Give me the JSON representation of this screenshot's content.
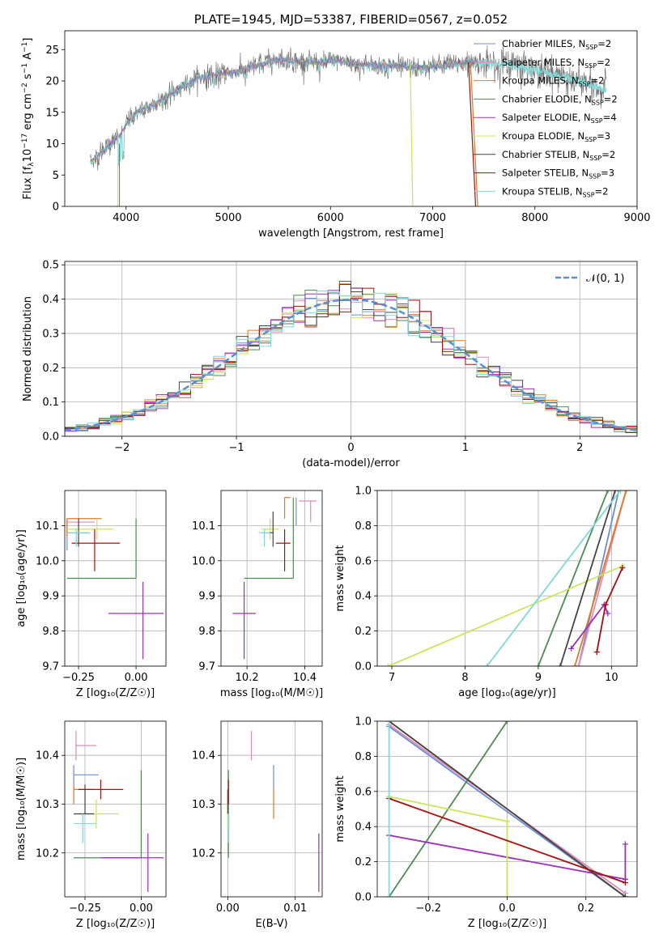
{
  "colors": {
    "chabrier_miles": "#6b8dd6",
    "salpeter_miles": "#e08bb8",
    "kroupa_miles": "#e07a22",
    "chabrier_elodie": "#4f8a55",
    "salpeter_elodie": "#9b30b8",
    "kroupa_elodie": "#c9e65a",
    "chabrier_stelib": "#444444",
    "salpeter_stelib": "#a50f0f",
    "kroupa_stelib": "#7fd9d9",
    "data_gray": "#777777",
    "normal_curve": "#5b8fd0",
    "grid": "#b0b0b0"
  },
  "chart_data": [
    {
      "id": "spectrum",
      "type": "line",
      "title": "PLATE=1945, MJD=53387, FIBERID=0567, z=0.052",
      "xlabel": "wavelength [Angstrom, rest frame]",
      "ylabel": "Flux [f",
      "ylabel_parts": [
        "Flux [f",
        "λ",
        "10",
        "−17",
        " erg cm",
        "−2",
        " s",
        "−1",
        " A",
        "−1",
        "]"
      ],
      "xlim": [
        3400,
        9000
      ],
      "ylim": [
        0,
        28
      ],
      "xticks": [
        4000,
        5000,
        6000,
        7000,
        8000,
        9000
      ],
      "yticks": [
        0,
        5,
        10,
        15,
        20,
        25
      ],
      "grid": false,
      "legend_position": "top-right",
      "legend": [
        {
          "label": "Chabrier MILES, N",
          "sub": "SSP",
          "tail": "=2",
          "color_key": "chabrier_miles"
        },
        {
          "label": "Salpeter MILES, N",
          "sub": "SSP",
          "tail": "=2",
          "color_key": "salpeter_miles"
        },
        {
          "label": "Kroupa MILES, N",
          "sub": "SSP",
          "tail": "=2",
          "color_key": "kroupa_miles"
        },
        {
          "label": "Chabrier ELODIE, N",
          "sub": "SSP",
          "tail": "=2",
          "color_key": "chabrier_elodie"
        },
        {
          "label": "Salpeter ELODIE, N",
          "sub": "SSP",
          "tail": "=4",
          "color_key": "salpeter_elodie"
        },
        {
          "label": "Kroupa ELODIE, N",
          "sub": "SSP",
          "tail": "=3",
          "color_key": "kroupa_elodie"
        },
        {
          "label": "Chabrier STELIB, N",
          "sub": "SSP",
          "tail": "=2",
          "color_key": "chabrier_stelib"
        },
        {
          "label": "Salpeter STELIB, N",
          "sub": "SSP",
          "tail": "=3",
          "color_key": "salpeter_stelib"
        },
        {
          "label": "Kroupa STELIB, N",
          "sub": "SSP",
          "tail": "=2",
          "color_key": "kroupa_stelib"
        }
      ],
      "continuum": [
        [
          3650,
          7.0
        ],
        [
          3750,
          8.5
        ],
        [
          3850,
          10.0
        ],
        [
          3950,
          11.5
        ],
        [
          4000,
          13.0
        ],
        [
          4100,
          15.0
        ],
        [
          4300,
          16.5
        ],
        [
          4500,
          18.5
        ],
        [
          4700,
          20.5
        ],
        [
          4900,
          21.0
        ],
        [
          5100,
          21.5
        ],
        [
          5300,
          22.5
        ],
        [
          5500,
          23.5
        ],
        [
          5700,
          23.0
        ],
        [
          5900,
          23.0
        ],
        [
          6100,
          23.2
        ],
        [
          6300,
          22.5
        ],
        [
          6500,
          22.5
        ],
        [
          6700,
          22.3
        ],
        [
          6900,
          22.0
        ],
        [
          7100,
          22.5
        ],
        [
          7400,
          23.0
        ],
        [
          7800,
          22.5
        ],
        [
          8200,
          21.0
        ],
        [
          8500,
          19.5
        ],
        [
          8700,
          18.5
        ]
      ]
    },
    {
      "id": "residuals",
      "type": "bar",
      "xlabel": "(data-model)/error",
      "ylabel": "Normed distribution",
      "xlim": [
        -2.5,
        2.5
      ],
      "ylim": [
        0,
        0.51
      ],
      "xticks": [
        -2,
        -1,
        0,
        1,
        2
      ],
      "yticks": [
        0.0,
        0.1,
        0.2,
        0.3,
        0.4,
        0.5
      ],
      "grid": true,
      "legend_position": "top-right",
      "legend_label": "𝒩(0, 1)",
      "bin_width": 0.1
    },
    {
      "id": "age_vs_Z",
      "type": "scatter",
      "xlabel": "Z [log₁₀(Z/Z☉)]",
      "ylabel": "age  [log₁₀(age/yr)]",
      "xlim": [
        -0.31,
        0.13
      ],
      "ylim": [
        9.7,
        10.2
      ],
      "xticks": [
        -0.25,
        0.0
      ],
      "yticks": [
        9.7,
        9.8,
        9.9,
        10.0,
        10.1
      ],
      "grid": true,
      "points": [
        {
          "key": "chabrier_miles",
          "x": -0.3,
          "y": 10.08,
          "xe": [
            -0.3,
            -0.21
          ],
          "ye": [
            10.03,
            10.12
          ]
        },
        {
          "key": "salpeter_miles",
          "x": -0.3,
          "y": 10.11,
          "xe": [
            -0.3,
            -0.18
          ],
          "ye": [
            10.06,
            10.12
          ]
        },
        {
          "key": "kroupa_miles",
          "x": -0.3,
          "y": 10.12,
          "xe": [
            -0.3,
            -0.15
          ],
          "ye": [
            10.07,
            10.12
          ]
        },
        {
          "key": "chabrier_elodie",
          "x": 0.0,
          "y": 9.95,
          "xe": [
            -0.3,
            0.0
          ],
          "ye": [
            9.95,
            10.12
          ]
        },
        {
          "key": "salpeter_elodie",
          "x": 0.03,
          "y": 9.85,
          "xe": [
            -0.12,
            0.12
          ],
          "ye": [
            9.72,
            9.94
          ]
        },
        {
          "key": "kroupa_elodie",
          "x": -0.17,
          "y": 10.09,
          "xe": [
            -0.3,
            -0.1
          ],
          "ye": [
            10.06,
            10.12
          ]
        },
        {
          "key": "chabrier_stelib",
          "x": -0.25,
          "y": 10.08,
          "xe": [
            -0.3,
            -0.2
          ],
          "ye": [
            10.04,
            10.12
          ]
        },
        {
          "key": "salpeter_stelib",
          "x": -0.18,
          "y": 10.05,
          "xe": [
            -0.28,
            -0.07
          ],
          "ye": [
            9.97,
            10.09
          ]
        },
        {
          "key": "kroupa_stelib",
          "x": -0.26,
          "y": 10.08,
          "xe": [
            -0.3,
            -0.2
          ],
          "ye": [
            10.04,
            10.09
          ]
        }
      ]
    },
    {
      "id": "age_vs_mass",
      "type": "scatter",
      "xlabel": "mass [log₁₀(M/M☉)]",
      "ylabel": "",
      "xlim": [
        10.11,
        10.46
      ],
      "ylim": [
        9.7,
        10.2
      ],
      "xticks": [
        10.2,
        10.4
      ],
      "yticks": [
        9.7,
        9.8,
        9.9,
        10.0,
        10.1
      ],
      "grid": true,
      "points": [
        {
          "key": "chabrier_miles",
          "x": 10.37,
          "y": 10.15,
          "xe": [
            10.37,
            10.37
          ],
          "ye": [
            10.1,
            10.18
          ]
        },
        {
          "key": "salpeter_miles",
          "x": 10.42,
          "y": 10.17,
          "xe": [
            10.38,
            10.44
          ],
          "ye": [
            10.11,
            10.17
          ]
        },
        {
          "key": "kroupa_miles",
          "x": 10.33,
          "y": 10.18,
          "xe": [
            10.33,
            10.35
          ],
          "ye": [
            10.12,
            10.18
          ]
        },
        {
          "key": "chabrier_elodie",
          "x": 10.36,
          "y": 9.95,
          "xe": [
            10.19,
            10.36
          ],
          "ye": [
            9.95,
            10.18
          ]
        },
        {
          "key": "salpeter_elodie",
          "x": 10.19,
          "y": 9.85,
          "xe": [
            10.15,
            10.23
          ],
          "ye": [
            9.72,
            9.94
          ]
        },
        {
          "key": "kroupa_elodie",
          "x": 10.28,
          "y": 10.09,
          "xe": [
            10.25,
            10.31
          ],
          "ye": [
            10.06,
            10.12
          ]
        },
        {
          "key": "chabrier_stelib",
          "x": 10.29,
          "y": 10.08,
          "xe": [
            10.25,
            10.29
          ],
          "ye": [
            10.04,
            10.14
          ]
        },
        {
          "key": "salpeter_stelib",
          "x": 10.33,
          "y": 10.05,
          "xe": [
            10.3,
            10.35
          ],
          "ye": [
            9.97,
            10.09
          ]
        },
        {
          "key": "kroupa_stelib",
          "x": 10.26,
          "y": 10.08,
          "xe": [
            10.24,
            10.28
          ],
          "ye": [
            10.04,
            10.09
          ]
        }
      ]
    },
    {
      "id": "massweight_vs_age",
      "type": "line",
      "xlabel": "age  [log₁₀(age/yr)]",
      "ylabel": "mass weight",
      "xlim": [
        6.8,
        10.35
      ],
      "ylim": [
        0,
        1
      ],
      "xticks": [
        7,
        8,
        9,
        10
      ],
      "yticks": [
        0.0,
        0.2,
        0.4,
        0.6,
        0.8,
        1.0
      ],
      "grid": true,
      "series": [
        {
          "key": "chabrier_miles",
          "points": [
            [
              9.55,
              0.0
            ],
            [
              10.1,
              1.0
            ]
          ]
        },
        {
          "key": "salpeter_miles",
          "points": [
            [
              9.55,
              0.0
            ],
            [
              10.2,
              1.0
            ]
          ]
        },
        {
          "key": "kroupa_miles",
          "points": [
            [
              9.5,
              0.0
            ],
            [
              10.2,
              1.0
            ]
          ]
        },
        {
          "key": "chabrier_elodie",
          "points": [
            [
              9.0,
              0.0
            ],
            [
              9.95,
              1.0
            ]
          ]
        },
        {
          "key": "salpeter_elodie",
          "points": [
            [
              9.45,
              0.1
            ],
            [
              9.9,
              0.35
            ],
            [
              9.95,
              0.3
            ]
          ]
        },
        {
          "key": "kroupa_elodie",
          "points": [
            [
              6.95,
              0.0
            ],
            [
              10.15,
              0.57
            ]
          ]
        },
        {
          "key": "chabrier_stelib",
          "points": [
            [
              9.3,
              0.0
            ],
            [
              10.05,
              1.0
            ]
          ]
        },
        {
          "key": "salpeter_stelib",
          "points": [
            [
              9.8,
              0.08
            ],
            [
              9.92,
              0.35
            ],
            [
              10.15,
              0.56
            ]
          ]
        },
        {
          "key": "kroupa_stelib",
          "points": [
            [
              8.3,
              0.0
            ],
            [
              10.12,
              1.0
            ]
          ]
        }
      ]
    },
    {
      "id": "mass_vs_Z",
      "type": "scatter",
      "xlabel": "Z [log₁₀(Z/Z☉)]",
      "ylabel": "mass [log₁₀(M/M☉)]",
      "xlim": [
        -0.34,
        0.11
      ],
      "ylim": [
        10.11,
        10.47
      ],
      "xticks": [
        -0.25,
        0.0
      ],
      "yticks": [
        10.2,
        10.3,
        10.4
      ],
      "grid": true,
      "points": [
        {
          "key": "chabrier_miles",
          "x": -0.3,
          "y": 10.36,
          "xe": [
            -0.3,
            -0.19
          ],
          "ye": [
            10.33,
            10.38
          ]
        },
        {
          "key": "salpeter_miles",
          "x": -0.29,
          "y": 10.42,
          "xe": [
            -0.29,
            -0.2
          ],
          "ye": [
            10.39,
            10.45
          ]
        },
        {
          "key": "kroupa_miles",
          "x": -0.3,
          "y": 10.33,
          "xe": [
            -0.3,
            -0.21
          ],
          "ye": [
            10.3,
            10.34
          ]
        },
        {
          "key": "chabrier_elodie",
          "x": 0.0,
          "y": 10.19,
          "xe": [
            -0.3,
            0.0
          ],
          "ye": [
            10.19,
            10.37
          ]
        },
        {
          "key": "salpeter_elodie",
          "x": 0.03,
          "y": 10.19,
          "xe": [
            -0.18,
            0.1
          ],
          "ye": [
            10.12,
            10.24
          ]
        },
        {
          "key": "kroupa_elodie",
          "x": -0.2,
          "y": 10.28,
          "xe": [
            -0.3,
            -0.1
          ],
          "ye": [
            10.25,
            10.31
          ]
        },
        {
          "key": "chabrier_stelib",
          "x": -0.25,
          "y": 10.28,
          "xe": [
            -0.3,
            -0.21
          ],
          "ye": [
            10.28,
            10.34
          ]
        },
        {
          "key": "salpeter_stelib",
          "x": -0.18,
          "y": 10.33,
          "xe": [
            -0.28,
            -0.08
          ],
          "ye": [
            10.31,
            10.35
          ]
        },
        {
          "key": "kroupa_stelib",
          "x": -0.26,
          "y": 10.26,
          "xe": [
            -0.3,
            -0.2
          ],
          "ye": [
            10.22,
            10.28
          ]
        }
      ]
    },
    {
      "id": "mass_vs_ebv",
      "type": "scatter",
      "xlabel": "E(B-V)",
      "ylabel": "",
      "xlim": [
        -0.001,
        0.014
      ],
      "ylim": [
        10.11,
        10.47
      ],
      "xticks": [
        0.0,
        0.01
      ],
      "yticks": [
        10.2,
        10.3,
        10.4
      ],
      "grid": true,
      "points": [
        {
          "key": "chabrier_miles",
          "x": 0.0068,
          "y": 10.35,
          "xe": [
            0.0068,
            0.0068
          ],
          "ye": [
            10.33,
            10.38
          ]
        },
        {
          "key": "salpeter_miles",
          "x": 0.0035,
          "y": 10.42,
          "xe": [
            0.0035,
            0.0035
          ],
          "ye": [
            10.39,
            10.45
          ]
        },
        {
          "key": "kroupa_miles",
          "x": 0.0068,
          "y": 10.3,
          "xe": [
            0.0068,
            0.0068
          ],
          "ye": [
            10.27,
            10.33
          ]
        },
        {
          "key": "chabrier_elodie",
          "x": 0.0001,
          "y": 10.28,
          "xe": [
            0.0001,
            0.0001
          ],
          "ye": [
            10.19,
            10.37
          ]
        },
        {
          "key": "salpeter_elodie",
          "x": 0.0135,
          "y": 10.19,
          "xe": [
            0.0135,
            0.0135
          ],
          "ye": [
            10.12,
            10.24
          ]
        },
        {
          "key": "kroupa_elodie",
          "x": 0.0,
          "y": 10.28,
          "xe": [
            0.0,
            0.0
          ],
          "ye": [
            10.25,
            10.31
          ]
        },
        {
          "key": "chabrier_stelib",
          "x": 0.0,
          "y": 10.3,
          "xe": [
            0.0,
            0.0
          ],
          "ye": [
            10.28,
            10.33
          ]
        },
        {
          "key": "salpeter_stelib",
          "x": 0.0001,
          "y": 10.32,
          "xe": [
            0.0001,
            0.0001
          ],
          "ye": [
            10.3,
            10.35
          ]
        },
        {
          "key": "kroupa_stelib",
          "x": 0.0001,
          "y": 10.25,
          "xe": [
            0.0001,
            0.0001
          ],
          "ye": [
            10.22,
            10.28
          ]
        }
      ]
    },
    {
      "id": "massweight_vs_Z",
      "type": "line",
      "xlabel": "Z [log₁₀(Z/Z☉)]",
      "ylabel": "mass weight",
      "xlim": [
        -0.33,
        0.33
      ],
      "ylim": [
        0,
        1
      ],
      "xticks": [
        -0.2,
        0.0,
        0.2
      ],
      "yticks": [
        0.0,
        0.2,
        0.4,
        0.6,
        0.8,
        1.0
      ],
      "grid": true,
      "series": [
        {
          "key": "chabrier_miles",
          "points": [
            [
              -0.3,
              0.97
            ],
            [
              0.3,
              0.0
            ]
          ]
        },
        {
          "key": "salpeter_miles",
          "points": [
            [
              -0.3,
              0.98
            ],
            [
              0.3,
              0.02
            ]
          ]
        },
        {
          "key": "kroupa_miles",
          "points": [
            [
              -0.3,
              1.0
            ],
            [
              0.3,
              0.0
            ]
          ]
        },
        {
          "key": "chabrier_elodie",
          "points": [
            [
              -0.3,
              0.0
            ],
            [
              0.0,
              1.0
            ]
          ]
        },
        {
          "key": "salpeter_elodie",
          "points": [
            [
              -0.3,
              0.35
            ],
            [
              0.3,
              0.1
            ],
            [
              0.3,
              0.3
            ]
          ]
        },
        {
          "key": "kroupa_elodie",
          "points": [
            [
              -0.3,
              0.57
            ],
            [
              0.0,
              0.43
            ],
            [
              0.0,
              0.0
            ]
          ]
        },
        {
          "key": "chabrier_stelib",
          "points": [
            [
              -0.3,
              1.0
            ],
            [
              0.3,
              0.0
            ]
          ]
        },
        {
          "key": "salpeter_stelib",
          "points": [
            [
              -0.3,
              0.56
            ],
            [
              0.3,
              0.08
            ]
          ]
        },
        {
          "key": "kroupa_stelib",
          "points": [
            [
              -0.3,
              1.0
            ],
            [
              -0.3,
              0.0
            ]
          ]
        }
      ]
    }
  ]
}
